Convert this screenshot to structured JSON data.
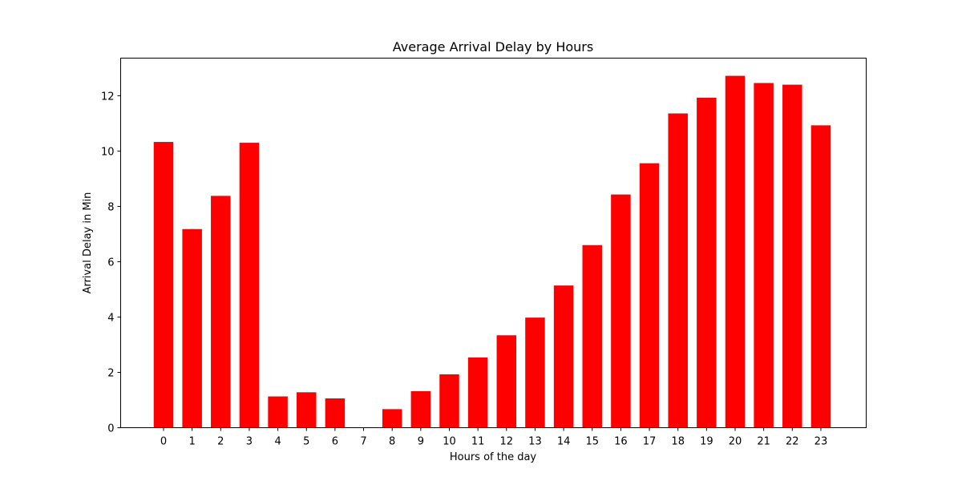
{
  "chart_data": {
    "type": "bar",
    "title": "Average Arrival Delay by Hours",
    "xlabel": "Hours of the day",
    "ylabel": "Arrival Delay in Min",
    "categories": [
      "0",
      "1",
      "2",
      "3",
      "4",
      "5",
      "6",
      "7",
      "8",
      "9",
      "10",
      "11",
      "12",
      "13",
      "14",
      "15",
      "16",
      "17",
      "18",
      "19",
      "20",
      "21",
      "22",
      "23"
    ],
    "values": [
      10.33,
      7.18,
      8.38,
      10.3,
      1.13,
      1.28,
      1.06,
      0.0,
      0.67,
      1.32,
      1.93,
      2.54,
      3.34,
      3.98,
      5.14,
      6.6,
      8.43,
      9.56,
      11.36,
      11.93,
      12.72,
      12.46,
      12.4,
      10.93
    ],
    "yticks": [
      0,
      2,
      4,
      6,
      8,
      10,
      12
    ],
    "ylim": [
      0,
      13.36
    ],
    "bar_color": "#ff0000",
    "grid": false,
    "legend": "none"
  }
}
